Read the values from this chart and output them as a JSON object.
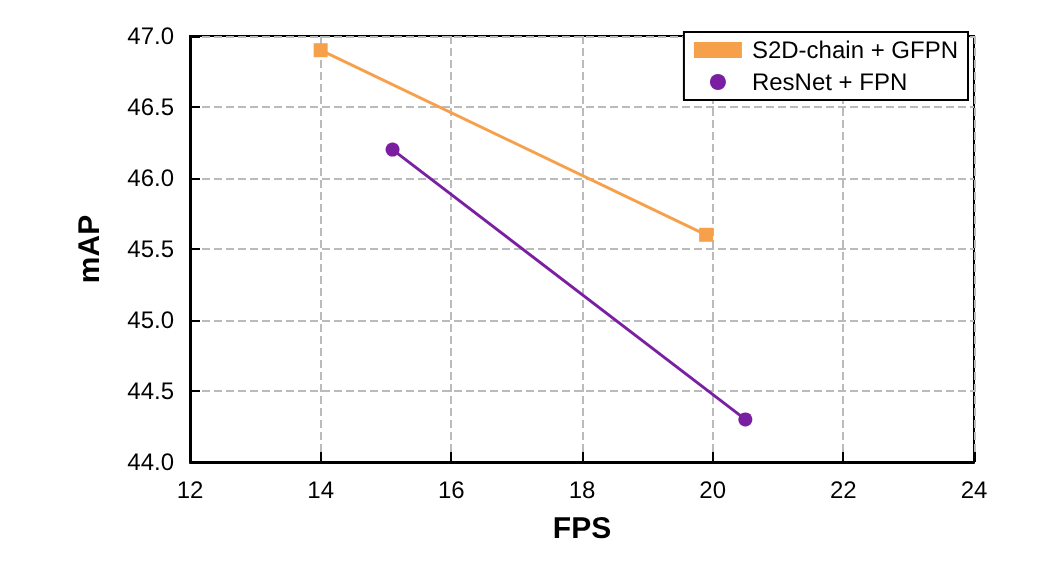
{
  "chart_data": {
    "type": "line",
    "xlabel": "FPS",
    "ylabel": "mAP",
    "series": [
      {
        "name": "S2D-chain + GFPN",
        "color": "#f7a04b",
        "marker": "square",
        "x": [
          14,
          19.9
        ],
        "values": [
          46.9,
          45.6
        ]
      },
      {
        "name": "ResNet + FPN",
        "color": "#7b1fa2",
        "marker": "circle",
        "x": [
          15.1,
          20.5
        ],
        "values": [
          46.2,
          44.3
        ]
      }
    ],
    "xlim": [
      12,
      24
    ],
    "xticks": [
      12,
      14,
      16,
      18,
      20,
      22,
      24
    ],
    "ylim": [
      44,
      47
    ],
    "yticks": [
      {
        "value": 44,
        "label": "44.0"
      },
      {
        "value": 44.5,
        "label": "44.5"
      },
      {
        "value": 45,
        "label": "45.0"
      },
      {
        "value": 45.5,
        "label": "45.5"
      },
      {
        "value": 46,
        "label": "46.0"
      },
      {
        "value": 46.5,
        "label": "46.5"
      },
      {
        "value": 47,
        "label": "47.0"
      }
    ],
    "grid": true,
    "legend": "top right",
    "line_style": "solid"
  }
}
